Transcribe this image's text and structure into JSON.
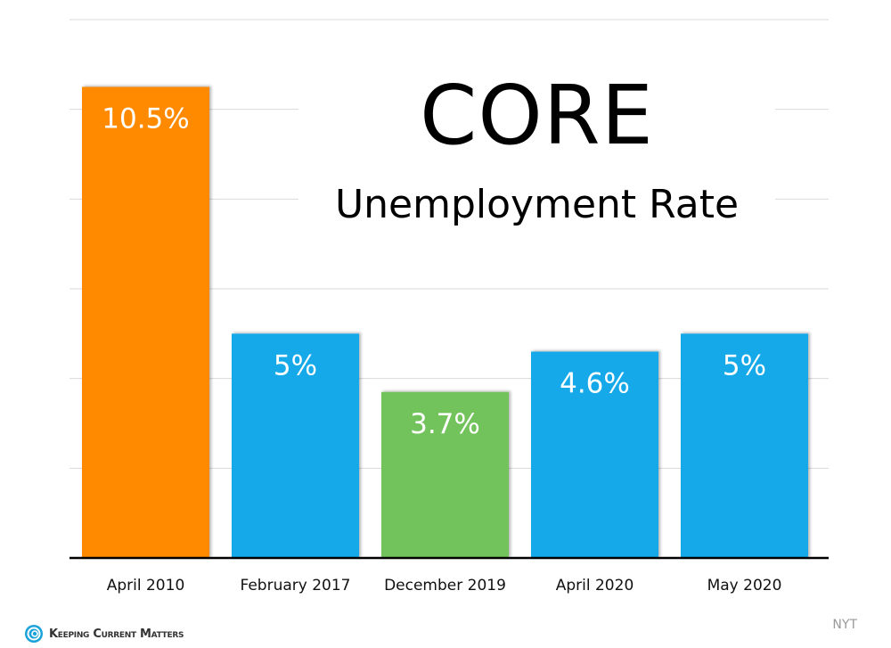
{
  "chart_data": {
    "type": "bar",
    "title": "CORE",
    "subtitle": "Unemployment Rate",
    "categories": [
      "April 2010",
      "February 2017",
      "December 2019",
      "April 2020",
      "May 2020"
    ],
    "values": [
      10.5,
      5,
      3.7,
      4.6,
      5
    ],
    "data_labels": [
      "10.5%",
      "5%",
      "3.7%",
      "4.6%",
      "5%"
    ],
    "colors": [
      "#FF8A00",
      "#12A9E9",
      "#72C35B",
      "#12A9E9",
      "#12A9E9"
    ],
    "ylim": [
      0,
      12
    ],
    "yticks": [
      0,
      2,
      4,
      6,
      8,
      10,
      12
    ],
    "grid": true,
    "xlabel": "",
    "ylabel": ""
  },
  "source": "NYT",
  "logo": {
    "text": "Keeping Current Matters"
  }
}
